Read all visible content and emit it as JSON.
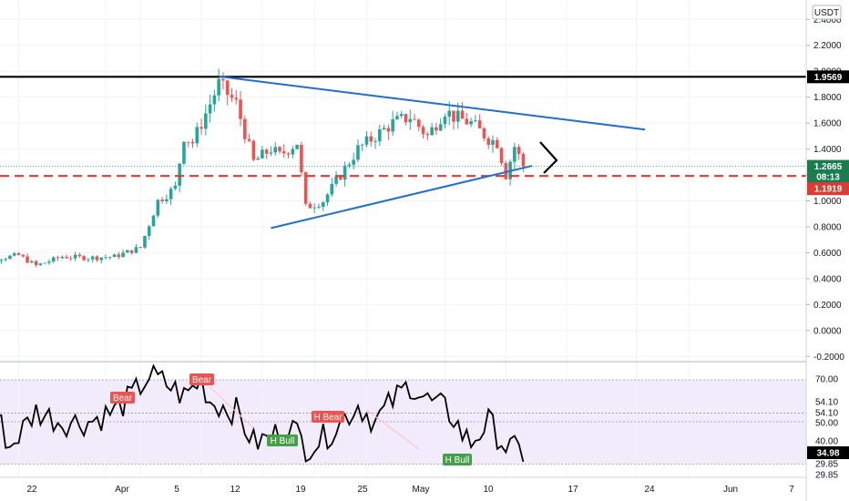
{
  "currency": "USDT",
  "colors": {
    "up": "#26a69a",
    "down": "#ef5350",
    "trendline": "#1e6fd0",
    "resistance": "#000000",
    "support_dashed": "#e03a35",
    "rsi_line": "#000000",
    "rsi_band": "#f1ebfb",
    "bull_label": "#43a047",
    "bear_label": "#ef5350",
    "current_price_bg": "#1b7d4f"
  },
  "price_axis": {
    "ticks": [
      "2.4000",
      "2.2000",
      "2.0000",
      "1.8000",
      "1.6000",
      "1.4000",
      "1.2000",
      "1.0000",
      "0.8000",
      "0.6000",
      "0.4000",
      "0.2000",
      "0.0000",
      "-0.2000"
    ],
    "tags": {
      "resistance": "1.9569",
      "last_price": "1.2665",
      "countdown": "08:13",
      "support": "1.1919"
    }
  },
  "rsi_axis": {
    "ticks": [
      "70.00",
      "54.10",
      "54.10",
      "50.00",
      "40.00",
      "29.85",
      "29.85"
    ],
    "current": "34.98"
  },
  "time_axis": {
    "labels": [
      "22",
      "Apr",
      "5",
      "12",
      "19",
      "25",
      "May",
      "10",
      "17",
      "24",
      "Jun",
      "7"
    ]
  },
  "signals": [
    {
      "text": "Bear",
      "kind": "bear"
    },
    {
      "text": "Bear",
      "kind": "bear"
    },
    {
      "text": "H Bear",
      "kind": "bear"
    },
    {
      "text": "H Bull",
      "kind": "bull"
    },
    {
      "text": "H Bull",
      "kind": "bull"
    }
  ],
  "chart_data": {
    "type": "candlestick",
    "symbol_quote": "USDT",
    "price_ylim": [
      -0.25,
      2.5
    ],
    "rsi_ylim": [
      27,
      80
    ],
    "levels": {
      "resistance": 1.9569,
      "support": 1.1919,
      "last": 1.2665
    },
    "price_anchors": [
      [
        "Mar 16",
        0.46
      ],
      [
        "Mar 19",
        0.55
      ],
      [
        "Mar 22",
        0.58
      ],
      [
        "Mar 24",
        0.5
      ],
      [
        "Mar 27",
        0.57
      ],
      [
        "Mar 30",
        0.56
      ],
      [
        "Apr 2",
        0.57
      ],
      [
        "Apr 5",
        0.64
      ],
      [
        "Apr 7",
        1.0
      ],
      [
        "Apr 9",
        1.1
      ],
      [
        "Apr 10",
        1.5
      ],
      [
        "Apr 11",
        1.45
      ],
      [
        "Apr 13",
        1.75
      ],
      [
        "Apr 14",
        1.9
      ],
      [
        "Apr 16",
        1.75
      ],
      [
        "Apr 18",
        1.3
      ],
      [
        "Apr 20",
        1.4
      ],
      [
        "Apr 21",
        1.35
      ],
      [
        "Apr 23",
        1.45
      ],
      [
        "Apr 24",
        0.95
      ],
      [
        "Apr 26",
        1.0
      ],
      [
        "Apr 28",
        1.2
      ],
      [
        "Apr 30",
        1.4
      ],
      [
        "May 2",
        1.5
      ],
      [
        "May 4",
        1.6
      ],
      [
        "May 6",
        1.65
      ],
      [
        "May 8",
        1.5
      ],
      [
        "May 10",
        1.7
      ],
      [
        "May 11",
        1.65
      ],
      [
        "May 13",
        1.6
      ],
      [
        "May 15",
        1.48
      ],
      [
        "May 16",
        1.45
      ],
      [
        "May 17",
        1.2
      ],
      [
        "May 18",
        1.42
      ],
      [
        "May 19",
        1.27
      ]
    ],
    "rsi_anchors": [
      [
        "Mar 18",
        70
      ],
      [
        "Mar 19",
        58
      ],
      [
        "Mar 21",
        38
      ],
      [
        "Mar 24",
        55
      ],
      [
        "Mar 27",
        50
      ],
      [
        "Mar 30",
        50
      ],
      [
        "Apr 2",
        55
      ],
      [
        "Apr 4",
        62
      ],
      [
        "Apr 6",
        72
      ],
      [
        "Apr 8",
        68
      ],
      [
        "Apr 10",
        62
      ],
      [
        "Apr 12",
        70
      ],
      [
        "Apr 13",
        60
      ],
      [
        "Apr 16",
        55
      ],
      [
        "Apr 18",
        40
      ],
      [
        "Apr 20",
        42
      ],
      [
        "Apr 22",
        50
      ],
      [
        "Apr 24",
        38
      ],
      [
        "Apr 26",
        42
      ],
      [
        "Apr 28",
        50
      ],
      [
        "Apr 30",
        58
      ],
      [
        "May 2",
        50
      ],
      [
        "May 4",
        60
      ],
      [
        "May 6",
        68
      ],
      [
        "May 8",
        60
      ],
      [
        "May 10",
        56
      ],
      [
        "May 11",
        52
      ],
      [
        "May 12",
        44
      ],
      [
        "May 13",
        40
      ],
      [
        "May 15",
        50
      ],
      [
        "May 17",
        38
      ],
      [
        "May 19",
        35
      ]
    ],
    "trendlines": [
      {
        "name": "upper",
        "from": [
          "Apr 14",
          1.96
        ],
        "to": [
          "Jun 2",
          1.55
        ]
      },
      {
        "name": "lower",
        "from": [
          "Apr 20",
          0.79
        ],
        "to": [
          "May 20",
          1.27
        ]
      }
    ],
    "rsi_levels": [
      70.0,
      54.1,
      50.0,
      29.85
    ]
  }
}
